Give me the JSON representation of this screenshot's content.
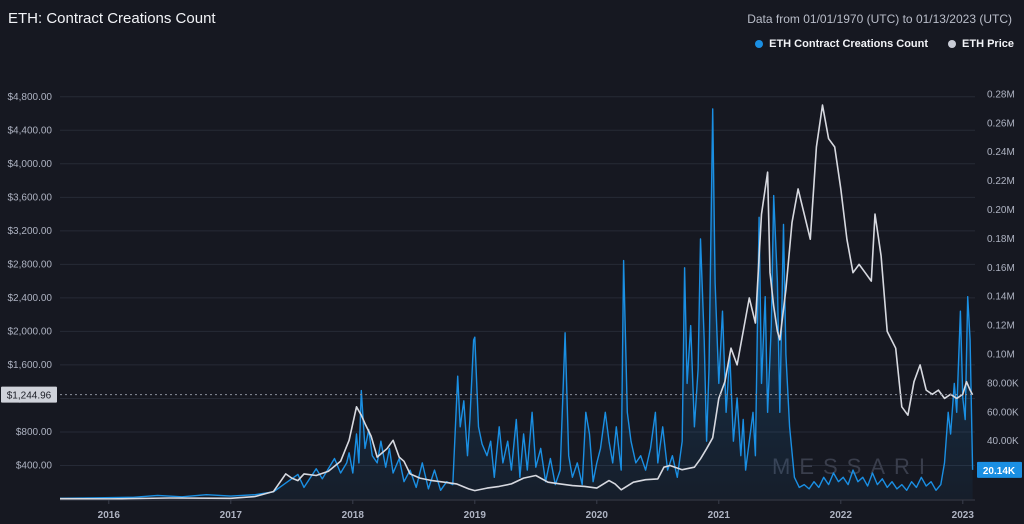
{
  "header": {
    "title": "ETH: Contract Creations Count",
    "range_text": "Data from 01/01/1970 (UTC) to 01/13/2023 (UTC)"
  },
  "legend": [
    {
      "name": "ETH Contract Creations Count",
      "color": "#1a8fe3"
    },
    {
      "name": "ETH Price",
      "color": "#c9ccd6"
    }
  ],
  "watermark": "MESSARI",
  "price_marker": "$1,244.96",
  "count_marker": "20.14K",
  "chart_data": {
    "type": "line",
    "title": "ETH: Contract Creations Count",
    "x_ticks": [
      "2016",
      "2017",
      "2018",
      "2019",
      "2020",
      "2021",
      "2022",
      "2023"
    ],
    "left_axis": {
      "label_ticks": [
        "$400.00",
        "$800.00",
        "$1,200.00",
        "$1,600.00",
        "$2,000.00",
        "$2,400.00",
        "$2,800.00",
        "$3,200.00",
        "$3,600.00",
        "$4,000.00",
        "$4,400.00",
        "$4,800.00"
      ],
      "ylim": [
        0,
        5000
      ]
    },
    "right_axis": {
      "label_ticks": [
        "20.00K",
        "40.00K",
        "60.00K",
        "80.00K",
        "0.10M",
        "0.12M",
        "0.14M",
        "0.16M",
        "0.18M",
        "0.20M",
        "0.22M",
        "0.24M",
        "0.26M",
        "0.28M"
      ],
      "ylim": [
        0,
        290000
      ]
    },
    "price_marker_value": 1244.96,
    "count_marker_value": 20140,
    "series": [
      {
        "name": "ETH Contract Creations Count",
        "axis": "right",
        "color": "#1a8fe3",
        "points": [
          [
            2015.6,
            500
          ],
          [
            2015.9,
            800
          ],
          [
            2016.2,
            1200
          ],
          [
            2016.4,
            2500
          ],
          [
            2016.6,
            1500
          ],
          [
            2016.8,
            3000
          ],
          [
            2017.0,
            2000
          ],
          [
            2017.2,
            3000
          ],
          [
            2017.35,
            5000
          ],
          [
            2017.45,
            11000
          ],
          [
            2017.55,
            17000
          ],
          [
            2017.6,
            8000
          ],
          [
            2017.7,
            21000
          ],
          [
            2017.75,
            14000
          ],
          [
            2017.85,
            28000
          ],
          [
            2017.9,
            18000
          ],
          [
            2017.95,
            25000
          ],
          [
            2017.97,
            32000
          ],
          [
            2018.0,
            18000
          ],
          [
            2018.03,
            45000
          ],
          [
            2018.05,
            25000
          ],
          [
            2018.07,
            75000
          ],
          [
            2018.1,
            35000
          ],
          [
            2018.13,
            48000
          ],
          [
            2018.16,
            30000
          ],
          [
            2018.2,
            25000
          ],
          [
            2018.23,
            40000
          ],
          [
            2018.27,
            22000
          ],
          [
            2018.3,
            35000
          ],
          [
            2018.33,
            18000
          ],
          [
            2018.38,
            28000
          ],
          [
            2018.42,
            12000
          ],
          [
            2018.47,
            20000
          ],
          [
            2018.52,
            8000
          ],
          [
            2018.57,
            25000
          ],
          [
            2018.62,
            7000
          ],
          [
            2018.67,
            20000
          ],
          [
            2018.72,
            6000
          ],
          [
            2018.77,
            12000
          ],
          [
            2018.82,
            10000
          ],
          [
            2018.86,
            85000
          ],
          [
            2018.88,
            50000
          ],
          [
            2018.91,
            68000
          ],
          [
            2018.94,
            30000
          ],
          [
            2018.96,
            55000
          ],
          [
            2018.99,
            110000
          ],
          [
            2019.0,
            112000
          ],
          [
            2019.03,
            50000
          ],
          [
            2019.06,
            38000
          ],
          [
            2019.1,
            30000
          ],
          [
            2019.13,
            40000
          ],
          [
            2019.16,
            15000
          ],
          [
            2019.2,
            50000
          ],
          [
            2019.23,
            25000
          ],
          [
            2019.27,
            40000
          ],
          [
            2019.3,
            20000
          ],
          [
            2019.34,
            55000
          ],
          [
            2019.37,
            15000
          ],
          [
            2019.4,
            45000
          ],
          [
            2019.43,
            20000
          ],
          [
            2019.47,
            60000
          ],
          [
            2019.5,
            22000
          ],
          [
            2019.54,
            35000
          ],
          [
            2019.58,
            12000
          ],
          [
            2019.62,
            28000
          ],
          [
            2019.66,
            10000
          ],
          [
            2019.7,
            20000
          ],
          [
            2019.74,
            115000
          ],
          [
            2019.77,
            30000
          ],
          [
            2019.8,
            15000
          ],
          [
            2019.84,
            25000
          ],
          [
            2019.88,
            10000
          ],
          [
            2019.91,
            60000
          ],
          [
            2019.94,
            45000
          ],
          [
            2019.97,
            12000
          ],
          [
            2020.0,
            25000
          ],
          [
            2020.03,
            35000
          ],
          [
            2020.07,
            60000
          ],
          [
            2020.1,
            40000
          ],
          [
            2020.13,
            25000
          ],
          [
            2020.16,
            50000
          ],
          [
            2020.2,
            20000
          ],
          [
            2020.22,
            165000
          ],
          [
            2020.25,
            60000
          ],
          [
            2020.28,
            40000
          ],
          [
            2020.32,
            25000
          ],
          [
            2020.36,
            30000
          ],
          [
            2020.4,
            20000
          ],
          [
            2020.44,
            35000
          ],
          [
            2020.48,
            60000
          ],
          [
            2020.5,
            25000
          ],
          [
            2020.54,
            50000
          ],
          [
            2020.58,
            20000
          ],
          [
            2020.62,
            30000
          ],
          [
            2020.66,
            15000
          ],
          [
            2020.7,
            40000
          ],
          [
            2020.72,
            160000
          ],
          [
            2020.74,
            80000
          ],
          [
            2020.77,
            120000
          ],
          [
            2020.8,
            50000
          ],
          [
            2020.83,
            90000
          ],
          [
            2020.85,
            180000
          ],
          [
            2020.88,
            110000
          ],
          [
            2020.9,
            40000
          ],
          [
            2020.92,
            90000
          ],
          [
            2020.95,
            270000
          ],
          [
            2020.97,
            150000
          ],
          [
            2021.0,
            80000
          ],
          [
            2021.03,
            130000
          ],
          [
            2021.06,
            60000
          ],
          [
            2021.09,
            100000
          ],
          [
            2021.12,
            40000
          ],
          [
            2021.15,
            70000
          ],
          [
            2021.18,
            30000
          ],
          [
            2021.2,
            55000
          ],
          [
            2021.22,
            20000
          ],
          [
            2021.25,
            40000
          ],
          [
            2021.28,
            60000
          ],
          [
            2021.3,
            30000
          ],
          [
            2021.33,
            195000
          ],
          [
            2021.35,
            80000
          ],
          [
            2021.38,
            140000
          ],
          [
            2021.4,
            60000
          ],
          [
            2021.43,
            120000
          ],
          [
            2021.45,
            210000
          ],
          [
            2021.48,
            150000
          ],
          [
            2021.5,
            60000
          ],
          [
            2021.53,
            190000
          ],
          [
            2021.55,
            100000
          ],
          [
            2021.58,
            50000
          ],
          [
            2021.62,
            15000
          ],
          [
            2021.66,
            8000
          ],
          [
            2021.7,
            10000
          ],
          [
            2021.74,
            7000
          ],
          [
            2021.78,
            12000
          ],
          [
            2021.82,
            8000
          ],
          [
            2021.86,
            15000
          ],
          [
            2021.9,
            10000
          ],
          [
            2021.94,
            18000
          ],
          [
            2021.98,
            12000
          ],
          [
            2022.02,
            15000
          ],
          [
            2022.06,
            10000
          ],
          [
            2022.1,
            20000
          ],
          [
            2022.14,
            12000
          ],
          [
            2022.18,
            15000
          ],
          [
            2022.22,
            9000
          ],
          [
            2022.26,
            18000
          ],
          [
            2022.3,
            10000
          ],
          [
            2022.34,
            14000
          ],
          [
            2022.38,
            8000
          ],
          [
            2022.42,
            12000
          ],
          [
            2022.46,
            7000
          ],
          [
            2022.5,
            10000
          ],
          [
            2022.54,
            6000
          ],
          [
            2022.58,
            12000
          ],
          [
            2022.62,
            8000
          ],
          [
            2022.66,
            15000
          ],
          [
            2022.7,
            9000
          ],
          [
            2022.74,
            12000
          ],
          [
            2022.78,
            6000
          ],
          [
            2022.82,
            10000
          ],
          [
            2022.85,
            25000
          ],
          [
            2022.88,
            60000
          ],
          [
            2022.9,
            45000
          ],
          [
            2022.93,
            80000
          ],
          [
            2022.95,
            60000
          ],
          [
            2022.98,
            130000
          ],
          [
            2023.0,
            70000
          ],
          [
            2023.02,
            55000
          ],
          [
            2023.04,
            140000
          ],
          [
            2023.06,
            110000
          ],
          [
            2023.08,
            20140
          ]
        ]
      },
      {
        "name": "ETH Price",
        "axis": "left",
        "color": "#d7d9e0",
        "points": [
          [
            2015.6,
            3
          ],
          [
            2016.0,
            1
          ],
          [
            2016.5,
            12
          ],
          [
            2017.0,
            8
          ],
          [
            2017.2,
            30
          ],
          [
            2017.35,
            90
          ],
          [
            2017.45,
            300
          ],
          [
            2017.5,
            250
          ],
          [
            2017.55,
            220
          ],
          [
            2017.6,
            300
          ],
          [
            2017.7,
            280
          ],
          [
            2017.8,
            330
          ],
          [
            2017.9,
            450
          ],
          [
            2017.97,
            700
          ],
          [
            2018.03,
            1100
          ],
          [
            2018.07,
            1000
          ],
          [
            2018.1,
            900
          ],
          [
            2018.15,
            750
          ],
          [
            2018.2,
            500
          ],
          [
            2018.28,
            600
          ],
          [
            2018.33,
            700
          ],
          [
            2018.38,
            500
          ],
          [
            2018.42,
            450
          ],
          [
            2018.47,
            300
          ],
          [
            2018.55,
            250
          ],
          [
            2018.65,
            220
          ],
          [
            2018.75,
            200
          ],
          [
            2018.85,
            180
          ],
          [
            2018.95,
            120
          ],
          [
            2019.0,
            100
          ],
          [
            2019.1,
            130
          ],
          [
            2019.2,
            150
          ],
          [
            2019.3,
            180
          ],
          [
            2019.4,
            250
          ],
          [
            2019.5,
            280
          ],
          [
            2019.6,
            200
          ],
          [
            2019.7,
            180
          ],
          [
            2019.8,
            160
          ],
          [
            2019.9,
            150
          ],
          [
            2020.0,
            130
          ],
          [
            2020.1,
            220
          ],
          [
            2020.15,
            180
          ],
          [
            2020.2,
            110
          ],
          [
            2020.3,
            200
          ],
          [
            2020.4,
            230
          ],
          [
            2020.5,
            240
          ],
          [
            2020.55,
            380
          ],
          [
            2020.6,
            400
          ],
          [
            2020.7,
            350
          ],
          [
            2020.8,
            380
          ],
          [
            2020.85,
            480
          ],
          [
            2020.9,
            600
          ],
          [
            2020.95,
            730
          ],
          [
            2021.0,
            1200
          ],
          [
            2021.05,
            1400
          ],
          [
            2021.1,
            1800
          ],
          [
            2021.15,
            1600
          ],
          [
            2021.2,
            2000
          ],
          [
            2021.25,
            2400
          ],
          [
            2021.3,
            2100
          ],
          [
            2021.35,
            3400
          ],
          [
            2021.4,
            3900
          ],
          [
            2021.42,
            2700
          ],
          [
            2021.45,
            2300
          ],
          [
            2021.48,
            2000
          ],
          [
            2021.5,
            1900
          ],
          [
            2021.55,
            2500
          ],
          [
            2021.6,
            3300
          ],
          [
            2021.65,
            3700
          ],
          [
            2021.7,
            3400
          ],
          [
            2021.75,
            3100
          ],
          [
            2021.8,
            4200
          ],
          [
            2021.85,
            4700
          ],
          [
            2021.9,
            4300
          ],
          [
            2021.95,
            4200
          ],
          [
            2022.0,
            3700
          ],
          [
            2022.05,
            3100
          ],
          [
            2022.1,
            2700
          ],
          [
            2022.15,
            2800
          ],
          [
            2022.2,
            2700
          ],
          [
            2022.25,
            2600
          ],
          [
            2022.28,
            3400
          ],
          [
            2022.33,
            2900
          ],
          [
            2022.38,
            2000
          ],
          [
            2022.45,
            1800
          ],
          [
            2022.5,
            1100
          ],
          [
            2022.55,
            1000
          ],
          [
            2022.6,
            1400
          ],
          [
            2022.65,
            1600
          ],
          [
            2022.7,
            1300
          ],
          [
            2022.75,
            1250
          ],
          [
            2022.8,
            1300
          ],
          [
            2022.85,
            1200
          ],
          [
            2022.9,
            1250
          ],
          [
            2022.95,
            1200
          ],
          [
            2023.0,
            1250
          ],
          [
            2023.03,
            1400
          ],
          [
            2023.06,
            1300
          ],
          [
            2023.08,
            1245
          ]
        ]
      }
    ]
  }
}
